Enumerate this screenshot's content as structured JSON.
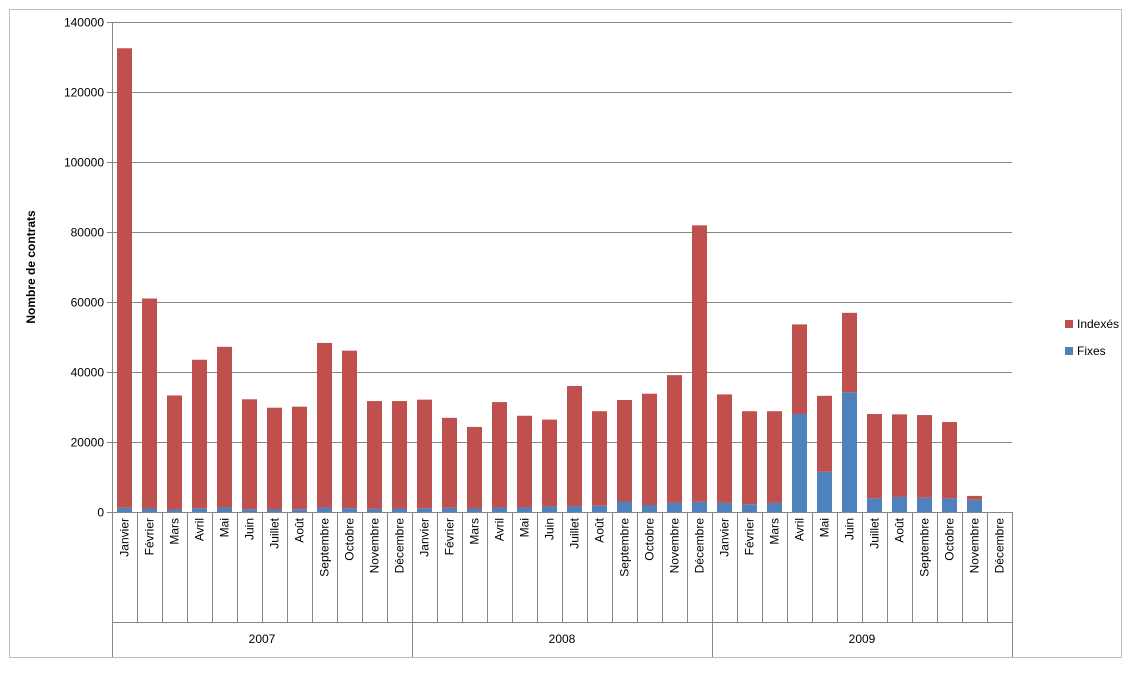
{
  "chart_data": {
    "type": "bar",
    "stacked": true,
    "ylabel": "Nombre de contrats",
    "ylim": [
      0,
      140000
    ],
    "yticks": [
      0,
      20000,
      40000,
      60000,
      80000,
      100000,
      120000,
      140000
    ],
    "grid": true,
    "legend_position": "right",
    "years": [
      "2007",
      "2008",
      "2009"
    ],
    "months": [
      "Janvier",
      "Février",
      "Mars",
      "Avril",
      "Mai",
      "Juin",
      "Juillet",
      "Août",
      "Septembre",
      "Octobre",
      "Novembre",
      "Décembre"
    ],
    "series": [
      {
        "name": "Fixes",
        "color": "#4F81BD",
        "values": [
          1200,
          1000,
          700,
          1100,
          1300,
          800,
          700,
          800,
          1300,
          1100,
          900,
          1000,
          1100,
          1200,
          1000,
          1300,
          1300,
          1600,
          1700,
          1800,
          3000,
          2000,
          2600,
          2900,
          2600,
          2200,
          2600,
          28000,
          11500,
          34200,
          3900,
          4300,
          4100,
          3900,
          3500,
          0
        ]
      },
      {
        "name": "Indexés",
        "color": "#C0504D",
        "values": [
          131300,
          60000,
          32600,
          42400,
          45900,
          31400,
          29100,
          29300,
          47000,
          45000,
          30800,
          30700,
          31000,
          25700,
          23300,
          30100,
          26200,
          24800,
          34300,
          27000,
          29000,
          31800,
          36500,
          79000,
          31000,
          26600,
          26200,
          25600,
          21700,
          22700,
          24100,
          23600,
          23600,
          21800,
          1100,
          0
        ]
      }
    ]
  }
}
